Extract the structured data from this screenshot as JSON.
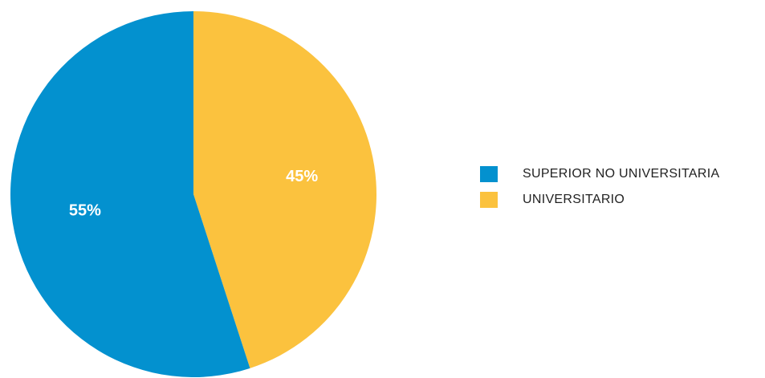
{
  "chart_data": {
    "type": "pie",
    "slices": [
      {
        "label": "UNIVERSITARIO",
        "value": 45,
        "display": "45%",
        "color": "#FBC23E"
      },
      {
        "label": "SUPERIOR NO UNIVERSITARIA",
        "value": 55,
        "display": "55%",
        "color": "#0391CF"
      }
    ],
    "legend": {
      "placement": "right",
      "items": [
        {
          "label": "SUPERIOR NO UNIVERSITARIA",
          "color": "#0391CF"
        },
        {
          "label": "UNIVERSITARIO",
          "color": "#FBC23E"
        }
      ]
    },
    "start_angle": "top",
    "direction": "clockwise"
  }
}
